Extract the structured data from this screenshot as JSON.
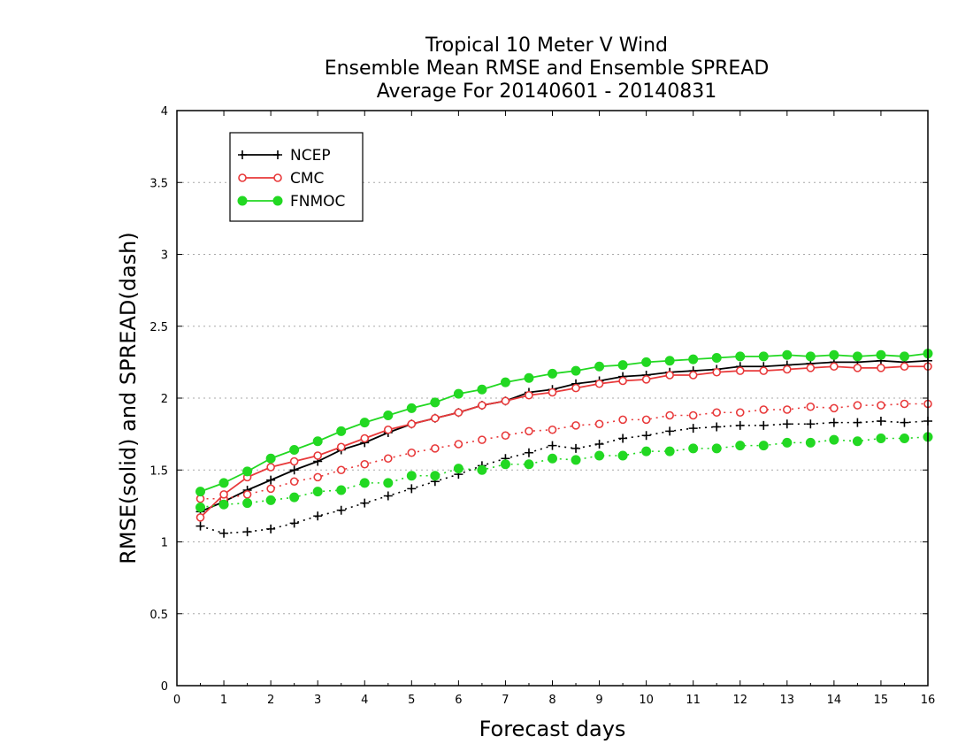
{
  "chart_data": {
    "type": "line",
    "title": [
      "Tropical 10 Meter V Wind",
      "Ensemble Mean RMSE and Ensemble SPREAD",
      "Average For 20140601 - 20140831"
    ],
    "xlabel": "Forecast days",
    "ylabel": "RMSE(solid) and SPREAD(dash)",
    "xlim": [
      0,
      16
    ],
    "ylim": [
      0,
      4
    ],
    "xticks": [
      "0",
      "1",
      "2",
      "3",
      "4",
      "5",
      "6",
      "7",
      "8",
      "9",
      "10",
      "11",
      "12",
      "13",
      "14",
      "15",
      "16"
    ],
    "yticks": [
      "0",
      "0.5",
      "1",
      "1.5",
      "2",
      "2.5",
      "3",
      "3.5",
      "4"
    ],
    "grid": "horizontal dotted",
    "legend_position": "top-left",
    "x": [
      0.5,
      1,
      1.5,
      2,
      2.5,
      3,
      3.5,
      4,
      4.5,
      5,
      5.5,
      6,
      6.5,
      7,
      7.5,
      8,
      8.5,
      9,
      9.5,
      10,
      10.5,
      11,
      11.5,
      12,
      12.5,
      13,
      13.5,
      14,
      14.5,
      15,
      15.5,
      16
    ],
    "series": [
      {
        "name": "NCEP",
        "color": "#000000",
        "marker": "plus",
        "rmse": [
          1.21,
          1.28,
          1.36,
          1.43,
          1.5,
          1.56,
          1.64,
          1.69,
          1.76,
          1.82,
          1.86,
          1.9,
          1.95,
          1.98,
          2.04,
          2.06,
          2.1,
          2.12,
          2.15,
          2.16,
          2.18,
          2.19,
          2.2,
          2.22,
          2.22,
          2.23,
          2.24,
          2.25,
          2.25,
          2.26,
          2.25,
          2.26
        ],
        "spread": [
          1.11,
          1.06,
          1.07,
          1.09,
          1.13,
          1.18,
          1.22,
          1.27,
          1.32,
          1.37,
          1.42,
          1.47,
          1.53,
          1.58,
          1.62,
          1.67,
          1.65,
          1.68,
          1.72,
          1.74,
          1.77,
          1.79,
          1.8,
          1.81,
          1.81,
          1.82,
          1.82,
          1.83,
          1.83,
          1.84,
          1.83,
          1.84
        ]
      },
      {
        "name": "CMC",
        "color": "#e8393a",
        "marker": "open-circle",
        "rmse": [
          1.17,
          1.33,
          1.45,
          1.52,
          1.56,
          1.6,
          1.66,
          1.72,
          1.78,
          1.82,
          1.86,
          1.9,
          1.95,
          1.98,
          2.02,
          2.04,
          2.07,
          2.1,
          2.12,
          2.13,
          2.16,
          2.16,
          2.18,
          2.19,
          2.19,
          2.2,
          2.21,
          2.22,
          2.21,
          2.21,
          2.22,
          2.22
        ],
        "spread": [
          1.3,
          1.3,
          1.33,
          1.37,
          1.42,
          1.45,
          1.5,
          1.54,
          1.58,
          1.62,
          1.65,
          1.68,
          1.71,
          1.74,
          1.77,
          1.78,
          1.81,
          1.82,
          1.85,
          1.85,
          1.88,
          1.88,
          1.9,
          1.9,
          1.92,
          1.92,
          1.94,
          1.93,
          1.95,
          1.95,
          1.96,
          1.96
        ]
      },
      {
        "name": "FNMOC",
        "color": "#22d822",
        "marker": "filled-circle",
        "rmse": [
          1.35,
          1.41,
          1.49,
          1.58,
          1.64,
          1.7,
          1.77,
          1.83,
          1.88,
          1.93,
          1.97,
          2.03,
          2.06,
          2.11,
          2.14,
          2.17,
          2.19,
          2.22,
          2.23,
          2.25,
          2.26,
          2.27,
          2.28,
          2.29,
          2.29,
          2.3,
          2.29,
          2.3,
          2.29,
          2.3,
          2.29,
          2.31
        ],
        "spread": [
          1.24,
          1.26,
          1.27,
          1.29,
          1.31,
          1.35,
          1.36,
          1.41,
          1.41,
          1.46,
          1.46,
          1.51,
          1.5,
          1.54,
          1.54,
          1.58,
          1.57,
          1.6,
          1.6,
          1.63,
          1.63,
          1.65,
          1.65,
          1.67,
          1.67,
          1.69,
          1.69,
          1.71,
          1.7,
          1.72,
          1.72,
          1.73
        ]
      }
    ]
  }
}
